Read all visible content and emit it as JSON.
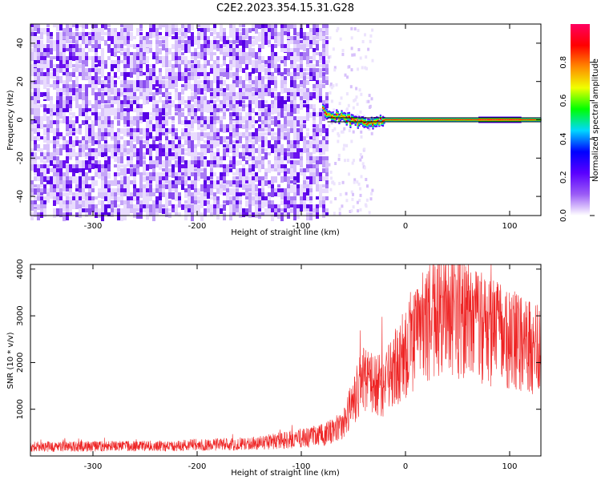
{
  "title": "C2E2.2023.354.15.31.G28",
  "chart_data": [
    {
      "type": "heatmap",
      "xlabel": "Height of straight line (km)",
      "ylabel": "Frequency (Hz)",
      "xlim": [
        -360,
        130
      ],
      "ylim": [
        -50,
        50
      ],
      "xticks": [
        -300,
        -200,
        -100,
        0,
        100
      ],
      "yticks": [
        -40,
        -20,
        0,
        20,
        40
      ],
      "colorbar": {
        "label": "Normalized spectral amplitude",
        "range": [
          0,
          1
        ],
        "ticks": [
          0.0,
          0.2,
          0.4,
          0.6,
          0.8
        ],
        "colors": [
          "#ffffff",
          "#9b5cf6",
          "#5a00ff",
          "#0000ff",
          "#00d8ff",
          "#00ff00",
          "#f0ff00",
          "#ff8800",
          "#ff0000",
          "#ff0060"
        ]
      },
      "noise_region_x": [
        -360,
        -75
      ],
      "signal_track": [
        {
          "x": -80,
          "y": 5
        },
        {
          "x": -70,
          "y": 2
        },
        {
          "x": -60,
          "y": 1
        },
        {
          "x": -50,
          "y": -1
        },
        {
          "x": -40,
          "y": -2
        },
        {
          "x": -30,
          "y": -1
        },
        {
          "x": -20,
          "y": 0
        },
        {
          "x": 0,
          "y": 0
        },
        {
          "x": 130,
          "y": 0
        }
      ],
      "reference_line_y": 0,
      "colors": {
        "noise": "#6a0ff0",
        "reference": "#000000"
      }
    },
    {
      "type": "line",
      "xlabel": "Height of straight line (km)",
      "ylabel": "SNR (10 * v/v)",
      "xlim": [
        -360,
        130
      ],
      "ylim": [
        0,
        4100
      ],
      "xticks": [
        -300,
        -200,
        -100,
        0,
        100
      ],
      "yticks": [
        1000,
        2000,
        3000,
        4000
      ],
      "series": [
        {
          "color": "#ee2222",
          "envelope": [
            {
              "x": -360,
              "y": 200
            },
            {
              "x": -250,
              "y": 210
            },
            {
              "x": -150,
              "y": 260
            },
            {
              "x": -100,
              "y": 380
            },
            {
              "x": -80,
              "y": 450
            },
            {
              "x": -60,
              "y": 650
            },
            {
              "x": -50,
              "y": 1200
            },
            {
              "x": -40,
              "y": 1700
            },
            {
              "x": -30,
              "y": 1500
            },
            {
              "x": -20,
              "y": 1500
            },
            {
              "x": -10,
              "y": 1900
            },
            {
              "x": 0,
              "y": 2200
            },
            {
              "x": 10,
              "y": 2600
            },
            {
              "x": 25,
              "y": 2900
            },
            {
              "x": 40,
              "y": 3000
            },
            {
              "x": 60,
              "y": 2900
            },
            {
              "x": 80,
              "y": 2700
            },
            {
              "x": 100,
              "y": 2500
            },
            {
              "x": 130,
              "y": 2300
            }
          ]
        }
      ]
    }
  ]
}
